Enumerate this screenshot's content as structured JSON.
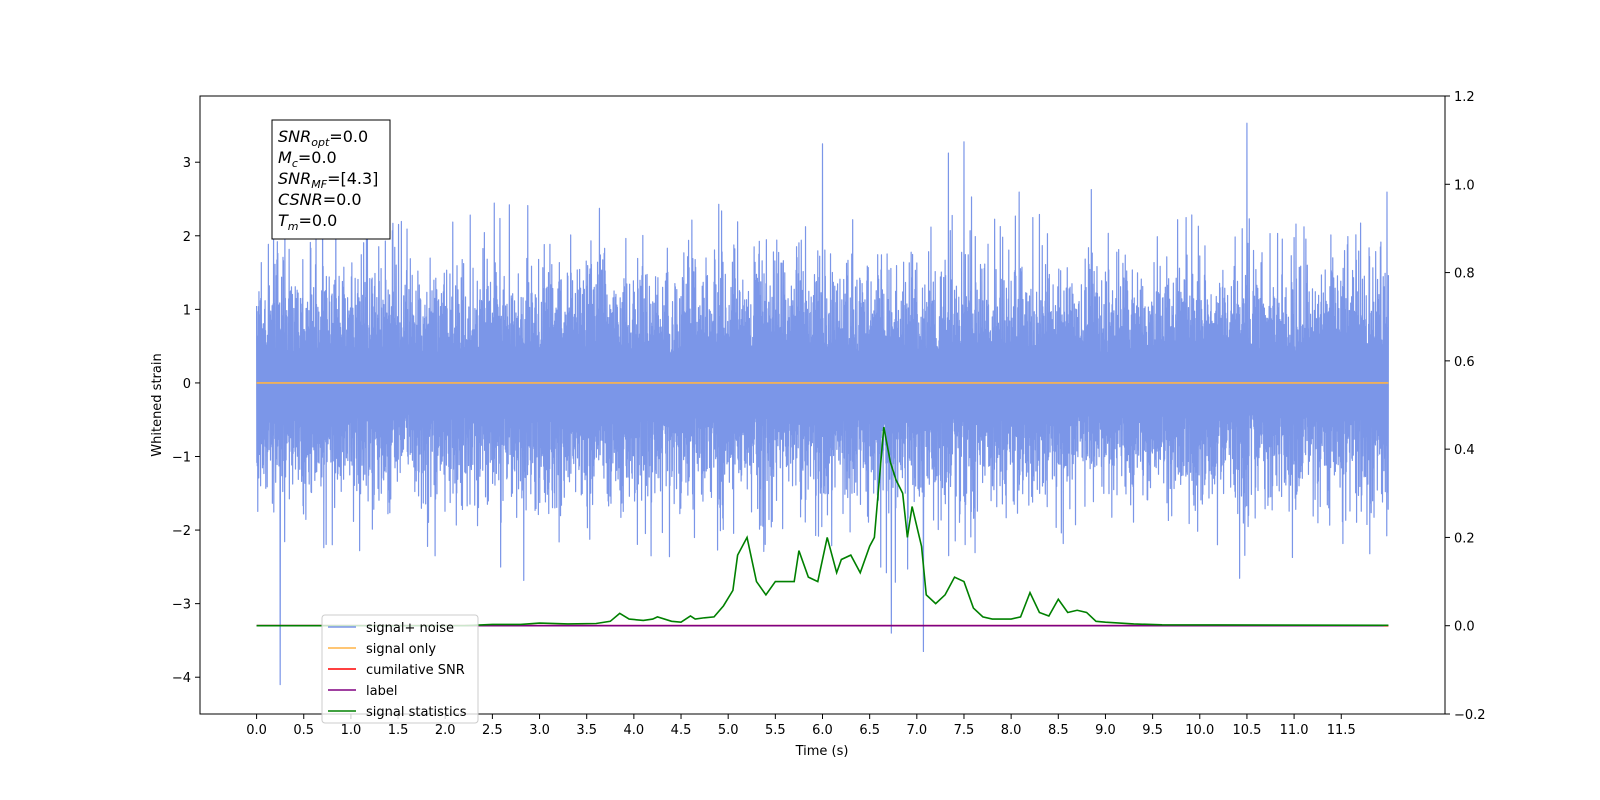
{
  "chart_data": {
    "type": "line",
    "xlabel": "Time (s)",
    "ylabel": "Whitened strain",
    "xlim": [
      -0.6,
      12.6
    ],
    "ylim": [
      -4.5,
      3.9
    ],
    "y2lim": [
      -0.2,
      1.2
    ],
    "x_ticks": [
      "0.0",
      "0.5",
      "1.0",
      "1.5",
      "2.0",
      "2.5",
      "3.0",
      "3.5",
      "4.0",
      "4.5",
      "5.0",
      "5.5",
      "6.0",
      "6.5",
      "7.0",
      "7.5",
      "8.0",
      "8.5",
      "9.0",
      "9.5",
      "10.0",
      "10.5",
      "11.0",
      "11.5"
    ],
    "y_ticks": [
      "−4",
      "−3",
      "−2",
      "−1",
      "0",
      "1",
      "2",
      "3"
    ],
    "y2_ticks": [
      "−0.2",
      "0.0",
      "0.2",
      "0.4",
      "0.6",
      "0.8",
      "1.0",
      "1.2"
    ],
    "grid": false,
    "legend_position": "lower-left",
    "annotation": {
      "lines": [
        {
          "main": "SNR",
          "sub": "opt",
          "value": "=0.0"
        },
        {
          "main": "M",
          "sub": "c",
          "value": "=0.0"
        },
        {
          "main": "SNR",
          "sub": "MF",
          "value": "=[4.3]"
        },
        {
          "main": "CSNR",
          "sub": "",
          "value": "=0.0"
        },
        {
          "main": "T",
          "sub": "m",
          "value": "=0.0"
        }
      ]
    },
    "series": [
      {
        "name": "signal+ noise",
        "color": "#7b96e8",
        "axis": "left",
        "kind": "noise",
        "x_range": [
          0,
          12
        ],
        "amplitude_typical": 1.7,
        "extremes": [
          [
            10.5,
            3.53
          ],
          [
            0.25,
            -4.1
          ],
          [
            7.07,
            -3.65
          ],
          [
            6.73,
            -3.4
          ],
          [
            6.0,
            3.25
          ]
        ]
      },
      {
        "name": "signal only",
        "color": "#ffb347",
        "axis": "left",
        "x": [
          0,
          12
        ],
        "values": [
          0,
          0
        ]
      },
      {
        "name": "cumilative SNR",
        "color": "#ff0000",
        "axis": "right",
        "x": [
          0,
          12
        ],
        "values": [
          0,
          0
        ]
      },
      {
        "name": "label",
        "color": "#800080",
        "axis": "right",
        "x": [
          0,
          11.95
        ],
        "values": [
          0,
          0
        ]
      },
      {
        "name": "signal statistics",
        "color": "#008000",
        "axis": "right",
        "x": [
          0,
          2.2,
          2.5,
          2.8,
          3.0,
          3.3,
          3.6,
          3.75,
          3.85,
          3.95,
          4.1,
          4.2,
          4.25,
          4.4,
          4.5,
          4.6,
          4.65,
          4.75,
          4.85,
          4.95,
          5.05,
          5.1,
          5.2,
          5.3,
          5.4,
          5.5,
          5.6,
          5.7,
          5.75,
          5.85,
          5.95,
          6.05,
          6.15,
          6.2,
          6.3,
          6.4,
          6.5,
          6.55,
          6.65,
          6.72,
          6.78,
          6.85,
          6.9,
          6.95,
          7.05,
          7.1,
          7.2,
          7.3,
          7.4,
          7.5,
          7.6,
          7.7,
          7.8,
          8.0,
          8.1,
          8.2,
          8.3,
          8.4,
          8.5,
          8.6,
          8.7,
          8.8,
          8.9,
          9.0,
          9.3,
          9.6,
          12.0
        ],
        "values": [
          0,
          0,
          0.003,
          0.003,
          0.006,
          0.004,
          0.005,
          0.01,
          0.028,
          0.015,
          0.012,
          0.015,
          0.02,
          0.01,
          0.008,
          0.022,
          0.015,
          0.018,
          0.02,
          0.045,
          0.08,
          0.16,
          0.2,
          0.1,
          0.07,
          0.1,
          0.1,
          0.1,
          0.17,
          0.11,
          0.1,
          0.2,
          0.12,
          0.15,
          0.16,
          0.12,
          0.18,
          0.2,
          0.45,
          0.37,
          0.33,
          0.3,
          0.2,
          0.27,
          0.18,
          0.07,
          0.05,
          0.07,
          0.11,
          0.1,
          0.04,
          0.02,
          0.015,
          0.015,
          0.02,
          0.075,
          0.03,
          0.022,
          0.06,
          0.03,
          0.035,
          0.03,
          0.01,
          0.008,
          0.004,
          0.002,
          0.001
        ]
      }
    ]
  }
}
